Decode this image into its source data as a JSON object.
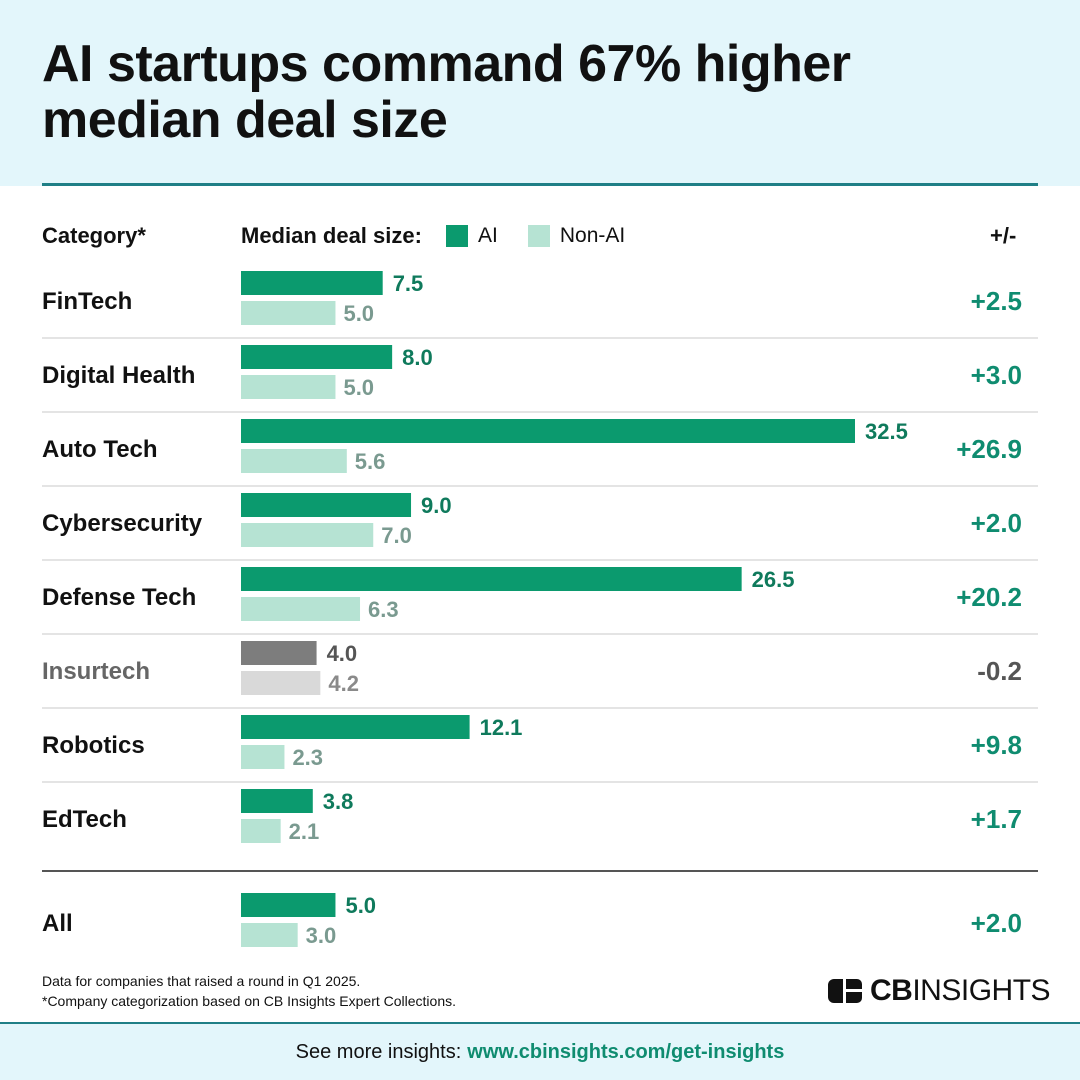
{
  "title": "AI startups command 67% higher median deal size",
  "table_header": {
    "category": "Category*",
    "median_label": "Median deal size:",
    "legend_ai": "AI",
    "legend_nonai": "Non-AI",
    "diff": "+/-"
  },
  "colors": {
    "ai": "#0b9a6e",
    "nonai": "#b6e3d3",
    "ai_muted": "#7d7d7d",
    "nonai_muted": "#d9d9d9",
    "diff_pos": "#0f8c70",
    "diff_neg": "#555555",
    "ai_label": "#0f7a5c",
    "nonai_label": "#7a9a90",
    "label_muted": "#555555",
    "nonai_label_muted": "#8a8a8a"
  },
  "chart_data": {
    "type": "bar",
    "orientation": "horizontal",
    "categories": [
      "FinTech",
      "Digital Health",
      "Auto Tech",
      "Cybersecurity",
      "Defense Tech",
      "Insurtech",
      "Robotics",
      "EdTech"
    ],
    "series": [
      {
        "name": "AI",
        "values": [
          7.5,
          8.0,
          32.5,
          9.0,
          26.5,
          4.0,
          12.1,
          3.8
        ]
      },
      {
        "name": "Non-AI",
        "values": [
          5.0,
          5.0,
          5.6,
          7.0,
          6.3,
          4.2,
          2.3,
          2.1
        ]
      }
    ],
    "value_labels": {
      "AI": [
        "7.5",
        "8.0",
        "32.5",
        "9.0",
        "26.5",
        "4.0",
        "12.1",
        "3.8"
      ],
      "Non-AI": [
        "5.0",
        "5.0",
        "5.6",
        "7.0",
        "6.3",
        "4.2",
        "2.3",
        "2.1"
      ]
    },
    "diffs": [
      "+2.5",
      "+3.0",
      "+26.9",
      "+2.0",
      "+20.2",
      "-0.2",
      "+9.8",
      "+1.7"
    ],
    "muted_categories": [
      "Insurtech"
    ],
    "total": {
      "category": "All",
      "AI": 5.0,
      "Non-AI": 3.0,
      "AI_label": "5.0",
      "NonAI_label": "3.0",
      "diff": "+2.0"
    },
    "title": "AI startups command 67% higher median deal size",
    "xlabel": "Median deal size",
    "xlim": [
      0,
      32.5
    ],
    "legend": [
      "AI",
      "Non-AI"
    ],
    "legend_position": "top"
  },
  "footnotes": [
    "Data for companies that raised a round in Q1 2025.",
    "*Company categorization based on CB Insights Expert Collections."
  ],
  "logo": {
    "bold": "CB",
    "light": "INSIGHTS"
  },
  "footer": {
    "prefix": "See more insights:",
    "link": "www.cbinsights.com/get-insights"
  }
}
